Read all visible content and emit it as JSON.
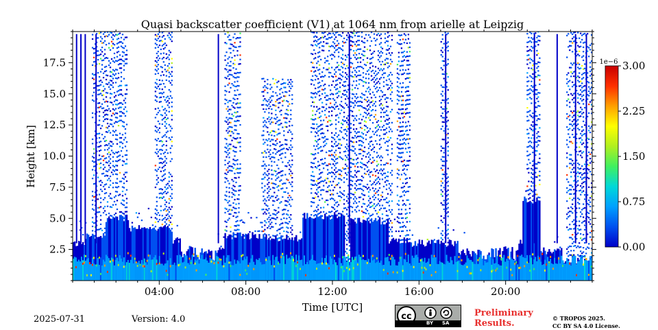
{
  "chart_data": {
    "type": "heatmap",
    "title": "Quasi backscatter coefficient (V1) at 1064 nm from arielle at Leipzig",
    "xlabel": "Time [UTC]",
    "ylabel": "Height [km]",
    "x_ticks": [
      "04:00",
      "08:00",
      "12:00",
      "16:00",
      "20:00"
    ],
    "x_tick_hours": [
      4,
      8,
      12,
      16,
      20
    ],
    "xlim_hours": [
      0,
      24
    ],
    "y_ticks": [
      "2.5",
      "5.0",
      "7.5",
      "10.0",
      "12.5",
      "15.0",
      "17.5"
    ],
    "y_tick_values": [
      2.5,
      5.0,
      7.5,
      10.0,
      12.5,
      15.0,
      17.5
    ],
    "ylim": [
      0,
      20
    ],
    "colorbar": {
      "exponent_label": "1e−6",
      "ticks": [
        "0.00",
        "0.75",
        "1.50",
        "2.25",
        "3.00"
      ],
      "tick_values": [
        0,
        0.75,
        1.5,
        2.25,
        3.0
      ],
      "range": [
        0,
        3.0
      ],
      "colormap": [
        "#0000c8",
        "#0050f0",
        "#00a0ff",
        "#00d8d8",
        "#40f060",
        "#b0f020",
        "#ffff00",
        "#ffa000",
        "#ff3000",
        "#c80000"
      ]
    },
    "dense_layers": [
      {
        "start_h": 0.0,
        "end_h": 0.6,
        "top_km": 3.0
      },
      {
        "start_h": 0.6,
        "end_h": 1.5,
        "top_km": 3.6
      },
      {
        "start_h": 1.5,
        "end_h": 2.6,
        "top_km": 5.0
      },
      {
        "start_h": 2.6,
        "end_h": 4.6,
        "top_km": 4.2
      },
      {
        "start_h": 4.6,
        "end_h": 6.0,
        "top_km": 3.2
      },
      {
        "start_h": 6.0,
        "end_h": 7.0,
        "top_km": 2.4
      },
      {
        "start_h": 7.0,
        "end_h": 9.0,
        "top_km": 3.6
      },
      {
        "start_h": 9.0,
        "end_h": 10.6,
        "top_km": 3.4
      },
      {
        "start_h": 10.6,
        "end_h": 12.6,
        "top_km": 5.2
      },
      {
        "start_h": 12.8,
        "end_h": 14.6,
        "top_km": 4.8
      },
      {
        "start_h": 14.6,
        "end_h": 15.5,
        "top_km": 3.2
      },
      {
        "start_h": 15.5,
        "end_h": 17.8,
        "top_km": 3.0
      },
      {
        "start_h": 17.8,
        "end_h": 19.2,
        "top_km": 2.3
      },
      {
        "start_h": 19.2,
        "end_h": 20.8,
        "top_km": 3.0
      },
      {
        "start_h": 20.8,
        "end_h": 21.6,
        "top_km": 6.5
      },
      {
        "start_h": 21.6,
        "end_h": 22.6,
        "top_km": 2.4
      },
      {
        "start_h": 22.6,
        "end_h": 24.0,
        "top_km": 1.6
      }
    ],
    "sparse_bands": [
      {
        "start_h": 0.9,
        "end_h": 2.5,
        "top_km": 20
      },
      {
        "start_h": 3.8,
        "end_h": 4.6,
        "top_km": 20
      },
      {
        "start_h": 7.0,
        "end_h": 7.8,
        "top_km": 20
      },
      {
        "start_h": 8.7,
        "end_h": 10.2,
        "top_km": 16
      },
      {
        "start_h": 11.0,
        "end_h": 14.8,
        "top_km": 20
      },
      {
        "start_h": 15.0,
        "end_h": 15.6,
        "top_km": 20
      },
      {
        "start_h": 17.0,
        "end_h": 17.4,
        "top_km": 20
      },
      {
        "start_h": 21.0,
        "end_h": 21.6,
        "top_km": 20
      },
      {
        "start_h": 22.8,
        "end_h": 24.0,
        "top_km": 20
      }
    ],
    "clear_gaps": [
      {
        "start_h": 5.0,
        "end_h": 6.6
      },
      {
        "start_h": 18.2,
        "end_h": 20.6
      }
    ]
  },
  "footer": {
    "date": "2025-07-31",
    "version": "Version: 4.0",
    "preliminary_line1": "Preliminary",
    "preliminary_line2": "Results.",
    "copyright_line1": "© TROPOS 2025.",
    "copyright_line2": "CC BY SA 4.0 License.",
    "license_badge": {
      "by": "BY",
      "sa": "SA",
      "cc": "cc"
    }
  }
}
